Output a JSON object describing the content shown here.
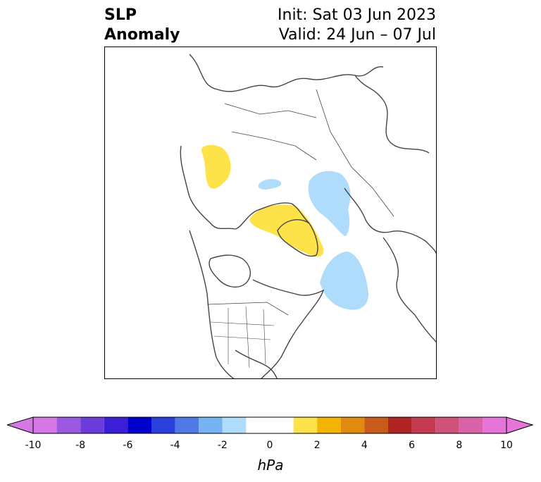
{
  "title": {
    "left_line1": "SLP",
    "left_line2": "Anomaly",
    "init": "Init: Sat 03 Jun 2023",
    "valid": "Valid: 24 Jun – 07 Jul"
  },
  "map": {
    "projection": "north-polar stereographic",
    "coastline_color": "#444444",
    "anomaly_regions": [
      {
        "name": "alaska-positive",
        "sign": "positive",
        "level": "0.5 to 1.5",
        "color": "#fde24a"
      },
      {
        "name": "greenland-positive",
        "sign": "positive",
        "level": "0.5 to 1.5",
        "color": "#fde24a"
      },
      {
        "name": "barents-negative",
        "sign": "negative",
        "level": "-1.5 to -0.5",
        "color": "#aedcfa"
      },
      {
        "name": "beaufort-negative",
        "sign": "negative",
        "level": "-1.5 to -0.5",
        "color": "#aedcfa"
      },
      {
        "name": "north-atlantic-negative",
        "sign": "negative",
        "level": "-1.5 to -0.5",
        "color": "#aedcfa"
      }
    ]
  },
  "colorbar": {
    "units": "hPa",
    "ticks": [
      "-10",
      "-8",
      "-6",
      "-4",
      "-2",
      "0",
      "2",
      "4",
      "6",
      "8",
      "10"
    ],
    "bins": [
      {
        "from": -10,
        "to": -9,
        "color": "#d677e6"
      },
      {
        "from": -9,
        "to": -8,
        "color": "#9b58e0"
      },
      {
        "from": -8,
        "to": -7,
        "color": "#6c3cdb"
      },
      {
        "from": -7,
        "to": -6,
        "color": "#3b1fd6"
      },
      {
        "from": -6,
        "to": -5,
        "color": "#0000cc"
      },
      {
        "from": -5,
        "to": -4,
        "color": "#2a40dd"
      },
      {
        "from": -4,
        "to": -3,
        "color": "#4f7ae6"
      },
      {
        "from": -3,
        "to": -2,
        "color": "#76b3f2"
      },
      {
        "from": -2,
        "to": -1,
        "color": "#aedcfa"
      },
      {
        "from": -1,
        "to": 1,
        "color": "#ffffff"
      },
      {
        "from": 1,
        "to": 2,
        "color": "#fde24a"
      },
      {
        "from": 2,
        "to": 3,
        "color": "#f2b400"
      },
      {
        "from": 3,
        "to": 4,
        "color": "#e08a10"
      },
      {
        "from": 4,
        "to": 5,
        "color": "#c85a1a"
      },
      {
        "from": 5,
        "to": 6,
        "color": "#b02424"
      },
      {
        "from": 6,
        "to": 7,
        "color": "#c43a50"
      },
      {
        "from": 7,
        "to": 8,
        "color": "#d0527a"
      },
      {
        "from": 8,
        "to": 9,
        "color": "#da63a8"
      },
      {
        "from": 9,
        "to": 10,
        "color": "#e575d8"
      }
    ],
    "extend_low_color": "#d677e6",
    "extend_high_color": "#e575d8"
  }
}
